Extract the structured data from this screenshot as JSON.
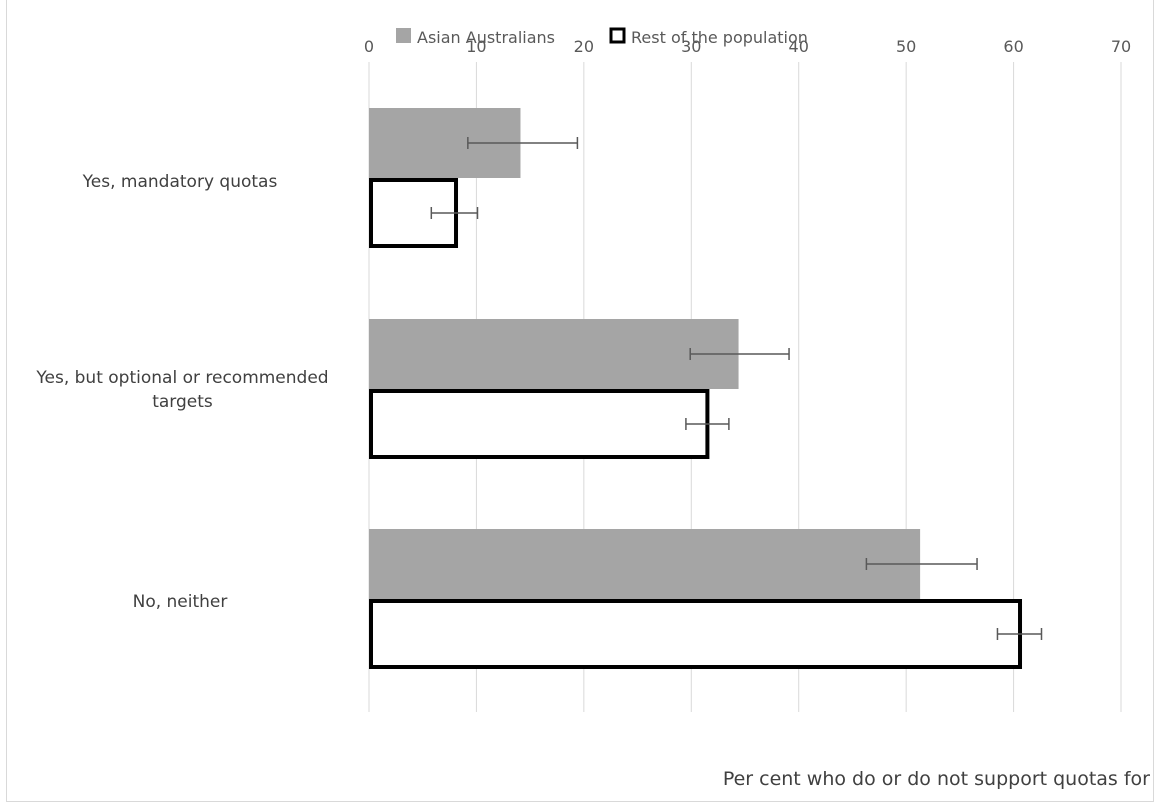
{
  "chart_data": {
    "type": "bar",
    "orientation": "horizontal",
    "categories": [
      "Yes, mandatory quotas",
      "Yes, but optional or recommended targets",
      "No, neither"
    ],
    "series": [
      {
        "name": "Asian Australians",
        "values": [
          14.1,
          34.4,
          51.3
        ],
        "error_low": [
          9.2,
          29.9,
          46.3
        ],
        "error_high": [
          19.4,
          39.1,
          56.6
        ],
        "color": "#a5a5a5",
        "outline": ""
      },
      {
        "name": "Rest of the population",
        "values": [
          8.1,
          31.5,
          60.6
        ],
        "error_low": [
          5.8,
          29.5,
          58.5
        ],
        "error_high": [
          10.1,
          33.5,
          62.6
        ],
        "color": "#ffffff",
        "outline": "#000000"
      }
    ],
    "xlim": [
      0,
      70
    ],
    "xticks": [
      "0",
      "10",
      "20",
      "30",
      "40",
      "50",
      "60",
      "70"
    ],
    "xlabel": "Per cent who do or do not support quotas for",
    "legend_position": "top-center",
    "grid": true,
    "grid_color": "#d9d9d9",
    "errorbar_color": "#595959"
  }
}
